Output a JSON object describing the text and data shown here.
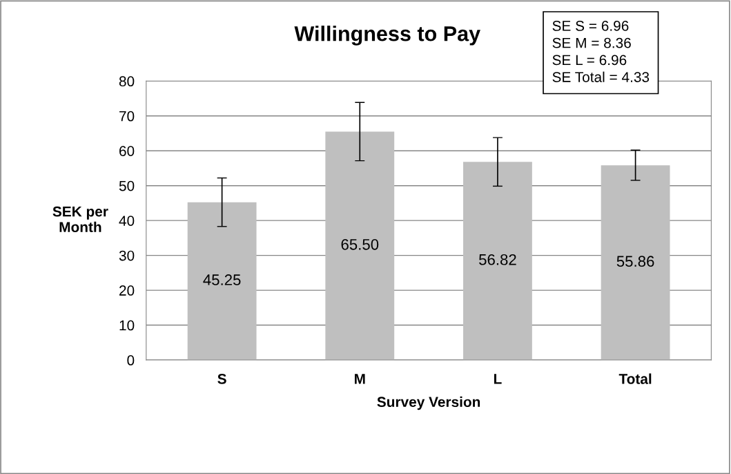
{
  "chart_data": {
    "type": "bar",
    "title": "Willingness to Pay",
    "xlabel": "Survey Version",
    "ylabel": "SEK per\nMonth",
    "categories": [
      "S",
      "M",
      "L",
      "Total"
    ],
    "values": [
      45.25,
      65.5,
      56.82,
      55.86
    ],
    "errors": [
      6.96,
      8.36,
      6.96,
      4.33
    ],
    "value_labels": [
      "45.25",
      "65.50",
      "56.82",
      "55.86"
    ],
    "color": "#bfbfbf",
    "ylim": [
      0,
      80
    ],
    "yticks": [
      0,
      10,
      20,
      30,
      40,
      50,
      60,
      70,
      80
    ],
    "grid": "y",
    "legend": false,
    "annotations": [
      "SE S = 6.96",
      "SE M = 8.36",
      "SE L = 6.96",
      "SE Total = 4.33"
    ]
  }
}
